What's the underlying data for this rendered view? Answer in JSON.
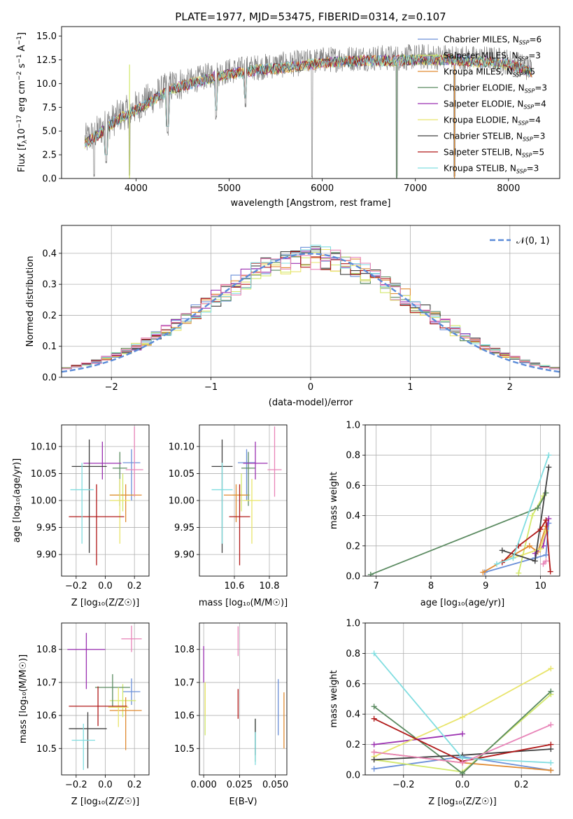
{
  "chart_data": [
    {
      "id": "spectrum",
      "type": "line",
      "title": "PLATE=1977, MJD=53475, FIBERID=0314, z=0.107",
      "xlabel": "wavelength [Angstrom, rest frame]",
      "ylabel_parts": [
        "Flux [f",
        "λ",
        "10",
        "−17",
        " erg cm",
        "−2",
        " s",
        "−1",
        " A",
        "−1",
        "]"
      ],
      "xlim": [
        3200,
        8550
      ],
      "ylim": [
        0,
        16
      ],
      "xticks": [
        4000,
        5000,
        6000,
        7000,
        8000
      ],
      "yticks": [
        0.0,
        2.5,
        5.0,
        7.5,
        10.0,
        12.5,
        15.0
      ],
      "grid": false,
      "legend_position": "right",
      "data_envelope": {
        "x": [
          3450,
          3600,
          3800,
          4000,
          4200,
          4400,
          4600,
          4800,
          5000,
          5200,
          5400,
          5600,
          5800,
          6000,
          6200,
          6400,
          6600,
          6800,
          7000,
          7200,
          7400,
          7600,
          7800,
          8000,
          8250
        ],
        "y": [
          4.0,
          5.0,
          6.5,
          7.5,
          8.7,
          9.8,
          10.3,
          10.9,
          11.3,
          11.6,
          11.8,
          12.0,
          12.2,
          12.5,
          12.6,
          12.7,
          12.7,
          12.7,
          12.8,
          12.8,
          12.8,
          12.6,
          12.6,
          12.3,
          11.5
        ]
      },
      "absorption_dips": [
        {
          "x": 3550,
          "y": 0.0
        },
        {
          "x": 3680,
          "y": 1.5
        },
        {
          "x": 3930,
          "y": 0.0
        },
        {
          "x": 4340,
          "y": 4.5
        },
        {
          "x": 4860,
          "y": 6.2
        },
        {
          "x": 5175,
          "y": 7.5
        },
        {
          "x": 5890,
          "y": 0.0
        },
        {
          "x": 6800,
          "y": 0.0
        },
        {
          "x": 7420,
          "y": 0.0
        }
      ]
    },
    {
      "id": "residuals",
      "type": "line",
      "xlabel": "(data-model)/error",
      "ylabel": "Normed distribution",
      "xlim": [
        -2.5,
        2.5
      ],
      "ylim": [
        0,
        0.49
      ],
      "xticks": [
        -2,
        -1,
        0,
        1,
        2
      ],
      "yticks": [
        0.0,
        0.1,
        0.2,
        0.3,
        0.4
      ],
      "grid": true,
      "legend_position": "upper right",
      "reference_label": "𝒩(0, 1)"
    },
    {
      "id": "z-age",
      "type": "scatter",
      "xlabel": "Z [log₁₀(Z/Z☉)]",
      "ylabel": "age  [log₁₀(age/yr)]",
      "xlim": [
        -0.3,
        0.3
      ],
      "ylim": [
        9.86,
        10.14
      ],
      "xticks": [
        -0.2,
        0.0,
        0.2
      ],
      "yticks": [
        9.9,
        9.95,
        10.0,
        10.05,
        10.1
      ],
      "grid": true,
      "points": [
        {
          "series": 0,
          "x": 0.18,
          "y": 10.07,
          "xerr": 0.06,
          "yerr": [
            0.07,
            0.025
          ]
        },
        {
          "series": 1,
          "x": 0.12,
          "y": 10.01,
          "xerr": 0.09,
          "yerr": [
            0.03,
            0.04
          ]
        },
        {
          "series": 2,
          "x": 0.14,
          "y": 10.01,
          "xerr": 0.11,
          "yerr": [
            0.05,
            0.02
          ]
        },
        {
          "series": 3,
          "x": 0.1,
          "y": 10.06,
          "xerr": 0.05,
          "yerr": [
            0.07,
            0.03
          ]
        },
        {
          "series": 4,
          "x": -0.02,
          "y": 10.069,
          "xerr": 0.13,
          "yerr": [
            0.03,
            0.04
          ]
        },
        {
          "series": 5,
          "x": 0.1,
          "y": 10.0,
          "xerr": 0.07,
          "yerr": [
            0.08,
            0.04
          ]
        },
        {
          "series": 6,
          "x": -0.11,
          "y": 10.063,
          "xerr": 0.12,
          "yerr": [
            0.16,
            0.05
          ]
        },
        {
          "series": 7,
          "x": -0.06,
          "y": 9.97,
          "xerr": 0.19,
          "yerr": [
            0.09,
            0.06
          ]
        },
        {
          "series": 8,
          "x": -0.16,
          "y": 10.02,
          "xerr": 0.08,
          "yerr": [
            0.1,
            0.05
          ]
        },
        {
          "series": 9,
          "x": 0.2,
          "y": 10.057,
          "xerr": 0.06,
          "yerr": [
            0.05,
            0.08
          ]
        }
      ]
    },
    {
      "id": "mass-age",
      "type": "scatter",
      "xlabel": "mass [log₁₀(M/M☉)]",
      "xlim": [
        10.4,
        10.9
      ],
      "ylim": [
        9.86,
        10.14
      ],
      "xticks": [
        10.6,
        10.8
      ],
      "yticks": [
        9.9,
        9.95,
        10.0,
        10.05,
        10.1
      ],
      "grid": true,
      "points": [
        {
          "series": 0,
          "x": 10.67,
          "y": 10.07,
          "xerr": 0.05,
          "yerr": [
            0.07,
            0.025
          ]
        },
        {
          "series": 1,
          "x": 10.64,
          "y": 10.01,
          "xerr": 0.05,
          "yerr": [
            0.03,
            0.04
          ]
        },
        {
          "series": 2,
          "x": 10.61,
          "y": 10.01,
          "xerr": 0.07,
          "yerr": [
            0.05,
            0.02
          ]
        },
        {
          "series": 3,
          "x": 10.68,
          "y": 10.06,
          "xerr": 0.04,
          "yerr": [
            0.07,
            0.03
          ]
        },
        {
          "series": 4,
          "x": 10.72,
          "y": 10.069,
          "xerr": 0.07,
          "yerr": [
            0.03,
            0.04
          ]
        },
        {
          "series": 5,
          "x": 10.7,
          "y": 10.0,
          "xerr": 0.05,
          "yerr": [
            0.08,
            0.04
          ]
        },
        {
          "series": 6,
          "x": 10.53,
          "y": 10.063,
          "xerr": 0.06,
          "yerr": [
            0.16,
            0.05
          ]
        },
        {
          "series": 7,
          "x": 10.63,
          "y": 9.97,
          "xerr": 0.06,
          "yerr": [
            0.09,
            0.06
          ]
        },
        {
          "series": 8,
          "x": 10.53,
          "y": 10.02,
          "xerr": 0.06,
          "yerr": [
            0.1,
            0.05
          ]
        },
        {
          "series": 9,
          "x": 10.83,
          "y": 10.057,
          "xerr": 0.04,
          "yerr": [
            0.05,
            0.08
          ]
        }
      ]
    },
    {
      "id": "age-weight",
      "type": "line",
      "xlabel": "age  [log₁₀(age/yr)]",
      "ylabel": "mass weight",
      "xlim": [
        6.8,
        10.35
      ],
      "ylim": [
        0,
        1
      ],
      "xticks": [
        7,
        8,
        9,
        10
      ],
      "yticks": [
        0.0,
        0.2,
        0.4,
        0.6,
        0.8,
        1.0
      ],
      "grid": true,
      "series": [
        {
          "series": 0,
          "points": [
            [
              8.98,
              0.025
            ],
            [
              9.9,
              0.12
            ],
            [
              10.1,
              0.14
            ],
            [
              10.15,
              0.35
            ]
          ]
        },
        {
          "series": 1,
          "points": [
            [
              9.6,
              0.02
            ],
            [
              9.85,
              0.4
            ],
            [
              10.05,
              0.53
            ]
          ]
        },
        {
          "series": 2,
          "points": [
            [
              8.95,
              0.025
            ],
            [
              9.8,
              0.2
            ],
            [
              9.95,
              0.16
            ],
            [
              10.1,
              0.33
            ]
          ]
        },
        {
          "series": 3,
          "points": [
            [
              6.9,
              0.01
            ],
            [
              9.95,
              0.45
            ],
            [
              10.1,
              0.55
            ]
          ]
        },
        {
          "series": 4,
          "points": [
            [
              9.9,
              0.15
            ],
            [
              10.05,
              0.2
            ],
            [
              10.15,
              0.38
            ]
          ]
        },
        {
          "series": 5,
          "points": [
            [
              9.5,
              0.12
            ],
            [
              10.0,
              0.18
            ],
            [
              10.1,
              0.3
            ]
          ]
        },
        {
          "series": 6,
          "points": [
            [
              9.3,
              0.17
            ],
            [
              9.9,
              0.1
            ],
            [
              10.15,
              0.72
            ]
          ]
        },
        {
          "series": 7,
          "points": [
            [
              9.3,
              0.09
            ],
            [
              9.6,
              0.2
            ],
            [
              10.0,
              0.31
            ],
            [
              10.1,
              0.37
            ],
            [
              10.18,
              0.03
            ]
          ]
        },
        {
          "series": 8,
          "points": [
            [
              9.2,
              0.08
            ],
            [
              9.5,
              0.12
            ],
            [
              10.15,
              0.8
            ]
          ]
        },
        {
          "series": 9,
          "points": [
            [
              10.05,
              0.08
            ],
            [
              10.1,
              0.1
            ]
          ]
        }
      ]
    },
    {
      "id": "z-mass",
      "type": "scatter",
      "xlabel": "Z [log₁₀(Z/Z☉)]",
      "ylabel": "mass [log₁₀(M/M☉)]",
      "xlim": [
        -0.3,
        0.3
      ],
      "ylim": [
        10.42,
        10.88
      ],
      "xticks": [
        -0.2,
        0.0,
        0.2
      ],
      "yticks": [
        10.5,
        10.6,
        10.7,
        10.8
      ],
      "grid": true,
      "points": [
        {
          "series": 0,
          "x": 0.18,
          "y": 10.672,
          "xerr": 0.06,
          "yerr": [
            0.04,
            0.04
          ]
        },
        {
          "series": 1,
          "x": 0.12,
          "y": 10.645,
          "xerr": 0.09,
          "yerr": [
            0.05,
            0.05
          ]
        },
        {
          "series": 2,
          "x": 0.14,
          "y": 10.615,
          "xerr": 0.11,
          "yerr": [
            0.12,
            0.04
          ]
        },
        {
          "series": 3,
          "x": 0.05,
          "y": 10.685,
          "xerr": 0.12,
          "yerr": [
            0.06,
            0.04
          ]
        },
        {
          "series": 4,
          "x": -0.13,
          "y": 10.8,
          "xerr": 0.13,
          "yerr": [
            0.12,
            0.05
          ]
        },
        {
          "series": 5,
          "x": 0.09,
          "y": 10.625,
          "xerr": 0.07,
          "yerr": [
            0.06,
            0.06
          ]
        },
        {
          "series": 6,
          "x": -0.12,
          "y": 10.56,
          "xerr": 0.13,
          "yerr": [
            0.12,
            0.05
          ]
        },
        {
          "series": 7,
          "x": -0.05,
          "y": 10.628,
          "xerr": 0.2,
          "yerr": [
            0.06,
            0.06
          ]
        },
        {
          "series": 8,
          "x": -0.15,
          "y": 10.525,
          "xerr": 0.08,
          "yerr": [
            0.09,
            0.05
          ]
        },
        {
          "series": 9,
          "x": 0.18,
          "y": 10.832,
          "xerr": 0.07,
          "yerr": [
            0.04,
            0.04
          ]
        }
      ]
    },
    {
      "id": "ebv-mass",
      "type": "scatter",
      "xlabel": "E(B-V)",
      "xlim": [
        -0.003,
        0.058
      ],
      "ylim": [
        10.42,
        10.88
      ],
      "xticks": [
        0.0,
        0.025,
        0.05
      ],
      "tick_labels": [
        "0.000",
        "0.025",
        "0.050"
      ],
      "yticks": [
        10.5,
        10.6,
        10.7,
        10.8
      ],
      "grid": true,
      "points": [
        {
          "series": 0,
          "x": 0.052,
          "y": 10.62,
          "yerr": [
            0.08,
            0.09
          ]
        },
        {
          "series": 1,
          "x": 0.001,
          "y": 10.62,
          "yerr": [
            0.08,
            0.08
          ]
        },
        {
          "series": 2,
          "x": 0.056,
          "y": 10.58,
          "yerr": [
            0.08,
            0.09
          ]
        },
        {
          "series": 3,
          "x": 0.036,
          "y": 10.53,
          "yerr": [
            0.07,
            0.06
          ]
        },
        {
          "series": 4,
          "x": 0.0,
          "y": 10.76,
          "yerr": [
            0.06,
            0.05
          ]
        },
        {
          "series": 5,
          "x": 0.001,
          "y": 10.65,
          "yerr": [
            0.05,
            0.05
          ]
        },
        {
          "series": 6,
          "x": 0.036,
          "y": 10.54,
          "yerr": [
            0.06,
            0.05
          ]
        },
        {
          "series": 7,
          "x": 0.024,
          "y": 10.63,
          "yerr": [
            0.04,
            0.05
          ]
        },
        {
          "series": 8,
          "x": 0.036,
          "y": 10.5,
          "yerr": [
            0.05,
            0.05
          ]
        },
        {
          "series": 9,
          "x": 0.024,
          "y": 10.82,
          "yerr": [
            0.04,
            0.05
          ]
        }
      ]
    },
    {
      "id": "z-weight",
      "type": "line",
      "xlabel": "Z [log₁₀(Z/Z☉)]",
      "ylabel": "mass weight",
      "xlim": [
        -0.33,
        0.33
      ],
      "ylim": [
        0,
        1
      ],
      "xticks": [
        -0.2,
        0.0,
        0.2
      ],
      "yticks": [
        0.0,
        0.2,
        0.4,
        0.6,
        0.8,
        1.0
      ],
      "grid": true,
      "series": [
        {
          "series": 0,
          "points": [
            [
              -0.3,
              0.04
            ],
            [
              0.0,
              0.12
            ],
            [
              0.3,
              0.03
            ]
          ]
        },
        {
          "series": 1,
          "points": [
            [
              -0.3,
              0.1
            ],
            [
              0.0,
              0.02
            ],
            [
              0.3,
              0.53
            ]
          ]
        },
        {
          "series": 2,
          "points": [
            [
              -0.3,
              0.15
            ],
            [
              0.0,
              0.08
            ],
            [
              0.3,
              0.03
            ]
          ]
        },
        {
          "series": 3,
          "points": [
            [
              -0.3,
              0.45
            ],
            [
              0.0,
              0.01
            ],
            [
              0.3,
              0.55
            ]
          ]
        },
        {
          "series": 4,
          "points": [
            [
              -0.3,
              0.2
            ],
            [
              0.0,
              0.27
            ]
          ]
        },
        {
          "series": 5,
          "points": [
            [
              -0.3,
              0.12
            ],
            [
              0.0,
              0.38
            ],
            [
              0.3,
              0.7
            ]
          ]
        },
        {
          "series": 6,
          "points": [
            [
              -0.3,
              0.1
            ],
            [
              0.0,
              0.13
            ],
            [
              0.3,
              0.17
            ]
          ]
        },
        {
          "series": 7,
          "points": [
            [
              -0.3,
              0.37
            ],
            [
              0.0,
              0.09
            ],
            [
              0.3,
              0.2
            ]
          ]
        },
        {
          "series": 8,
          "points": [
            [
              -0.3,
              0.8
            ],
            [
              0.0,
              0.11
            ],
            [
              0.3,
              0.08
            ]
          ]
        },
        {
          "series": 9,
          "points": [
            [
              -0.3,
              0.15
            ],
            [
              0.0,
              0.08
            ],
            [
              0.3,
              0.33
            ]
          ]
        }
      ]
    }
  ],
  "legend": [
    {
      "label": "Chabrier MILES",
      "n": "6",
      "color": "#6a8fd8"
    },
    {
      "label": "Salpeter MILES",
      "n": "3",
      "color": "#d2e86a"
    },
    {
      "label": "Kroupa MILES",
      "n": "5",
      "color": "#e08a30"
    },
    {
      "label": "Chabrier ELODIE",
      "n": "3",
      "color": "#5a8a60"
    },
    {
      "label": "Salpeter ELODIE",
      "n": "4",
      "color": "#9a2fb0"
    },
    {
      "label": "Kroupa ELODIE",
      "n": "4",
      "color": "#e8e46a"
    },
    {
      "label": "Chabrier STELIB",
      "n": "3",
      "color": "#404040"
    },
    {
      "label": "Salpeter STELIB",
      "n": "5",
      "color": "#b01818"
    },
    {
      "label": "Kroupa STELIB",
      "n": "3",
      "color": "#80dde0"
    }
  ],
  "extra_series_color": "#e884b8",
  "data_color": "#808080",
  "reference_color": "#5b8bd8"
}
